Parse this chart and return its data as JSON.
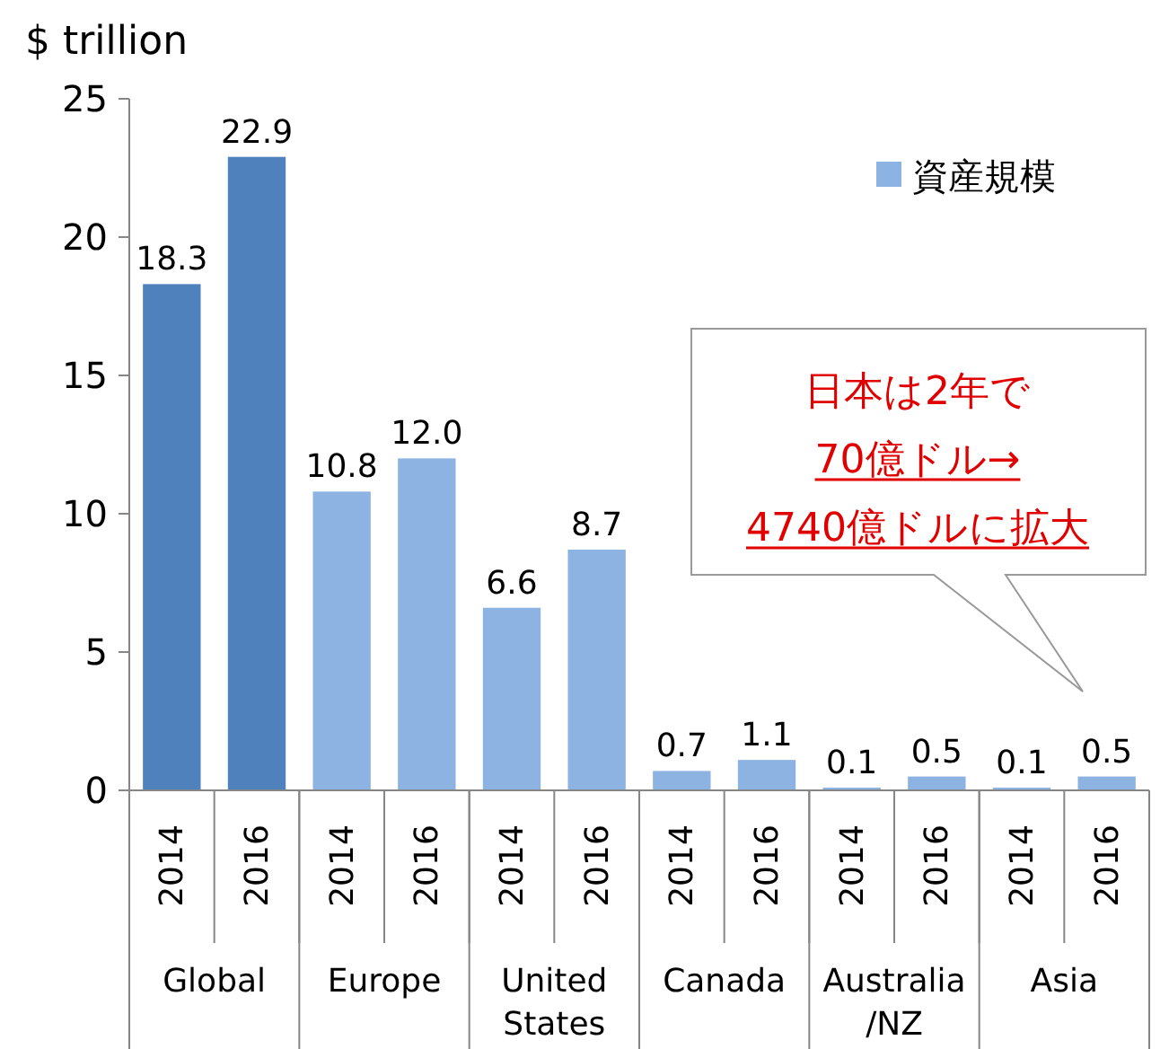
{
  "chart_data": {
    "type": "bar",
    "ylabel": "$ trillion",
    "categories": [
      "2014",
      "2016",
      "2014",
      "2016",
      "2014",
      "2016",
      "2014",
      "2016",
      "2014",
      "2016",
      "2014",
      "2016"
    ],
    "series": [
      {
        "name": "資産規模",
        "color": "#8db3e2",
        "values": [
          18.3,
          22.9,
          10.8,
          12.0,
          6.6,
          8.7,
          0.7,
          1.1,
          0.1,
          0.5,
          0.1,
          0.5
        ],
        "value_labels": [
          "18.3",
          "22.9",
          "10.8",
          "12.0",
          "6.6",
          "8.7",
          "0.7",
          "1.1",
          "0.1",
          "0.5",
          "0.1",
          "0.5"
        ],
        "colors": [
          "#4f81bd",
          "#4f81bd",
          "#8db3e2",
          "#8db3e2",
          "#8db3e2",
          "#8db3e2",
          "#8db3e2",
          "#8db3e2",
          "#8db3e2",
          "#8db3e2",
          "#8db3e2",
          "#8db3e2"
        ]
      }
    ],
    "ylim": [
      0,
      25
    ],
    "yticks": [
      0,
      5,
      10,
      15,
      20,
      25
    ],
    "legend": "top right",
    "grid": false,
    "annotations": [
      "Global",
      "Europe",
      "United States",
      "Canada",
      "Australia/NZ",
      "Asia",
      "日本は2年で",
      "70億ドル→",
      "4740億ドルに拡大"
    ]
  }
}
